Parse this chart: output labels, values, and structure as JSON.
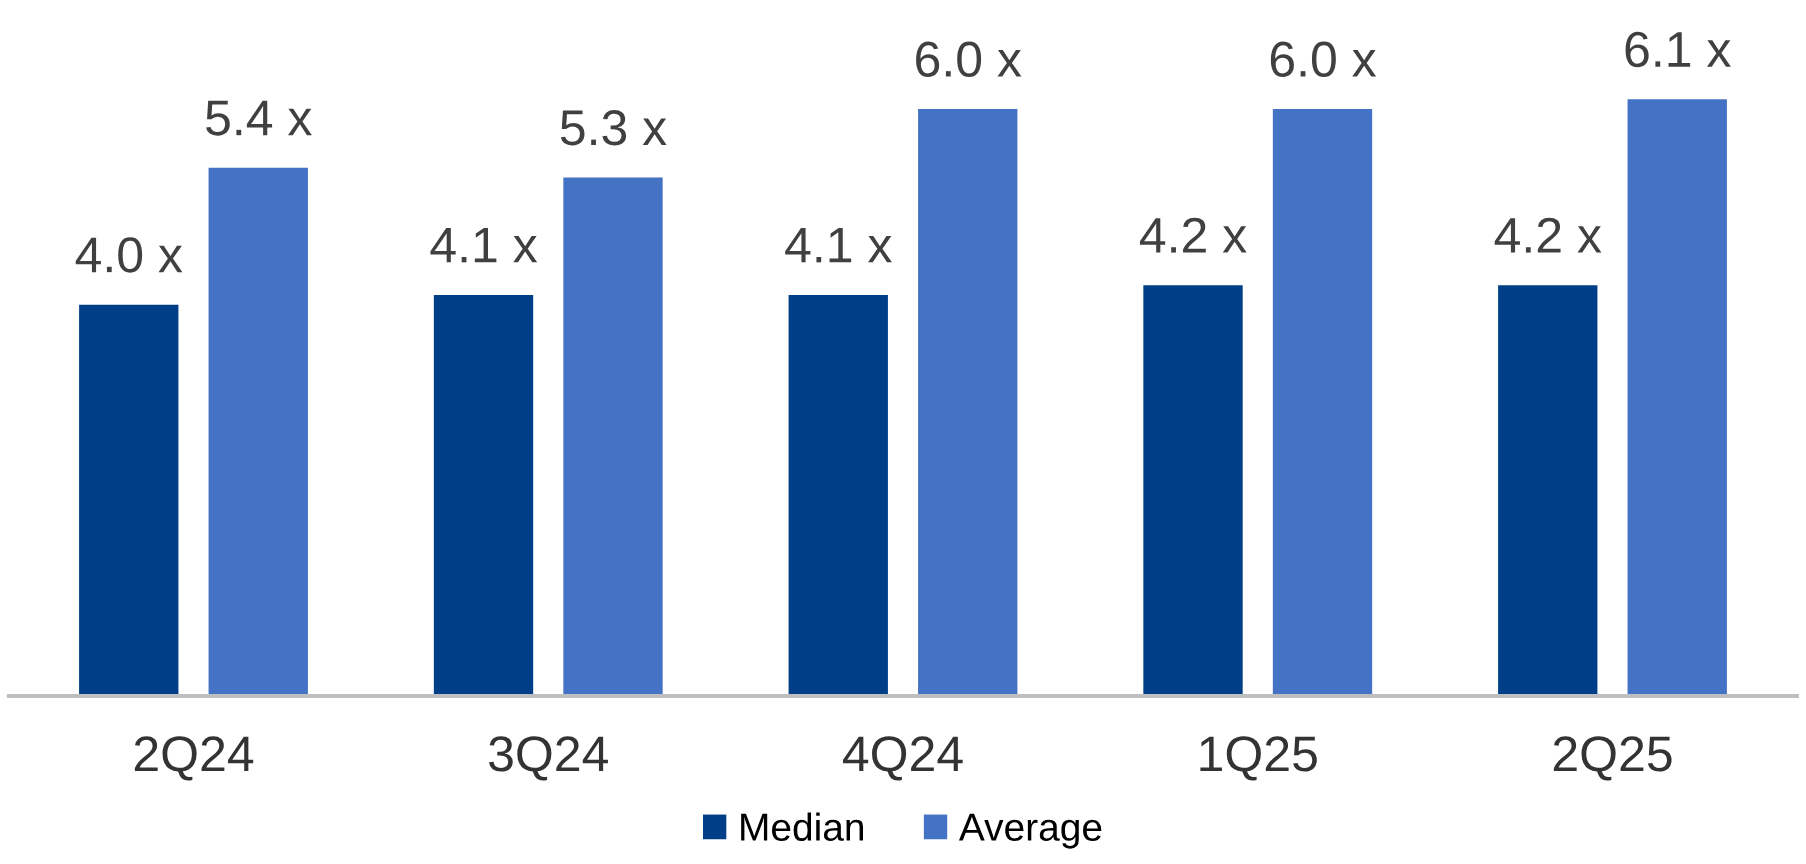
{
  "chart_data": {
    "type": "bar",
    "categories": [
      "2Q24",
      "3Q24",
      "4Q24",
      "1Q25",
      "2Q25"
    ],
    "series": [
      {
        "name": "Median",
        "color": "#003f87",
        "values": [
          4.0,
          4.1,
          4.1,
          4.2,
          4.2
        ],
        "value_labels": [
          "4.0 x",
          "4.1 x",
          "4.1 x",
          "4.2 x",
          "4.2 x"
        ]
      },
      {
        "name": "Average",
        "color": "#4472c4",
        "values": [
          5.4,
          5.3,
          6.0,
          6.0,
          6.1
        ],
        "value_labels": [
          "5.4 x",
          "5.3 x",
          "6.0 x",
          "6.0 x",
          "6.1 x"
        ]
      }
    ],
    "legend": "bottom"
  }
}
